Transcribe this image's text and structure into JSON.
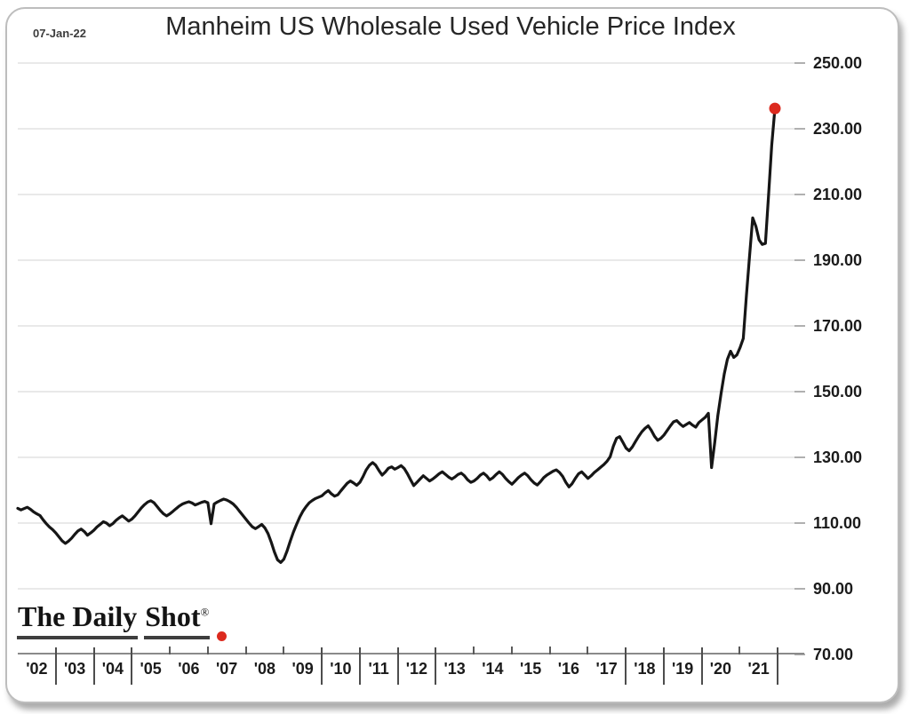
{
  "header": {
    "date": "07-Jan-22",
    "title": "Manheim US Wholesale Used Vehicle Price Index"
  },
  "logo": {
    "part1": "The Daily",
    "part2": "Shot",
    "registered": "®"
  },
  "colors": {
    "line": "#161616",
    "marker": "#dc2a1e",
    "grid": "#e9e9e9",
    "grid_tick": "#b0b0b0",
    "axis": "#8a8a8a",
    "text": "#1b1b1b"
  },
  "chart_data": {
    "type": "line",
    "title": "Manheim US Wholesale Used Vehicle Price Index",
    "xlabel": "",
    "ylabel": "",
    "ylim": [
      70,
      250
    ],
    "grid": "horizontal",
    "frequency": "monthly",
    "x_range": [
      "Jan 2002",
      "Dec 2021"
    ],
    "x_tick_labels": [
      "'02",
      "'03",
      "'04",
      "'05",
      "'06",
      "'07",
      "'08",
      "'09",
      "'10",
      "'11",
      "'12",
      "'13",
      "'14",
      "'15",
      "'16",
      "'17",
      "'18",
      "'19",
      "'20",
      "'21"
    ],
    "x_tick_separators": [
      "tall",
      "tall",
      "tall",
      "short",
      "short",
      "short",
      "short",
      "tall",
      "tall",
      "tall",
      "tall",
      "short",
      "short",
      "short",
      "short",
      "tall",
      "tall",
      "tall",
      "short",
      "tall"
    ],
    "y_tick_labels": [
      "250.00",
      "230.00",
      "210.00",
      "190.00",
      "170.00",
      "150.00",
      "130.00",
      "110.00",
      "90.00",
      "70.00"
    ],
    "series": [
      {
        "name": "Manheim US Wholesale Used Vehicle Price Index",
        "values": [
          114.5,
          114.0,
          114.4,
          114.8,
          114.2,
          113.4,
          112.8,
          112.3,
          111.0,
          109.8,
          108.8,
          108.0,
          107.0,
          105.8,
          104.6,
          103.8,
          104.5,
          105.4,
          106.6,
          107.6,
          108.2,
          107.4,
          106.3,
          107.0,
          107.8,
          108.8,
          109.6,
          110.4,
          110.0,
          109.2,
          109.8,
          110.8,
          111.6,
          112.2,
          111.4,
          110.6,
          111.2,
          112.2,
          113.4,
          114.6,
          115.6,
          116.4,
          116.8,
          116.2,
          115.0,
          113.8,
          112.8,
          112.2,
          112.8,
          113.6,
          114.4,
          115.2,
          115.8,
          116.2,
          116.5,
          116.1,
          115.5,
          115.9,
          116.3,
          116.6,
          116.2,
          109.8,
          115.8,
          116.4,
          116.9,
          117.3,
          117.0,
          116.5,
          115.8,
          114.8,
          113.6,
          112.4,
          111.2,
          110.0,
          108.9,
          108.3,
          108.9,
          109.6,
          108.5,
          106.8,
          104.2,
          101.2,
          98.8,
          98.0,
          99.0,
          101.5,
          104.5,
          107.2,
          109.6,
          111.8,
          113.6,
          115.0,
          116.2,
          116.9,
          117.5,
          117.9,
          118.3,
          119.2,
          119.9,
          118.9,
          118.2,
          118.6,
          119.8,
          121.0,
          122.1,
          122.8,
          122.2,
          121.5,
          122.4,
          124.2,
          126.2,
          127.6,
          128.4,
          127.6,
          126.0,
          124.6,
          125.5,
          126.7,
          127.1,
          126.4,
          126.9,
          127.5,
          126.6,
          125.0,
          123.2,
          121.4,
          122.4,
          123.4,
          124.4,
          123.6,
          122.8,
          123.4,
          124.2,
          125.0,
          125.6,
          124.8,
          124.0,
          123.4,
          124.0,
          124.8,
          125.2,
          124.4,
          123.2,
          122.4,
          122.8,
          123.6,
          124.6,
          125.2,
          124.4,
          123.2,
          123.8,
          124.8,
          125.6,
          124.8,
          123.6,
          122.6,
          121.8,
          122.8,
          123.8,
          124.6,
          125.2,
          124.4,
          123.2,
          122.2,
          121.6,
          122.6,
          123.8,
          124.6,
          125.2,
          125.8,
          126.2,
          125.4,
          124.2,
          122.4,
          121.0,
          122.0,
          123.6,
          125.0,
          125.6,
          124.6,
          123.6,
          124.4,
          125.4,
          126.2,
          127.0,
          127.8,
          128.8,
          130.2,
          133.4,
          135.8,
          136.3,
          134.6,
          132.8,
          132.0,
          133.2,
          134.8,
          136.4,
          137.8,
          138.8,
          139.6,
          138.2,
          136.4,
          135.2,
          135.8,
          136.8,
          138.2,
          139.6,
          140.8,
          141.2,
          140.2,
          139.4,
          140.0,
          140.6,
          139.8,
          139.2,
          140.6,
          141.4,
          142.2,
          143.4,
          126.9,
          134.6,
          142.8,
          149.4,
          155.4,
          159.8,
          162.3,
          160.4,
          161.2,
          163.4,
          166.2,
          179.2,
          191.4,
          202.9,
          200.3,
          196.2,
          194.8,
          195.1,
          210.0,
          225.0,
          236.2
        ]
      }
    ],
    "end_marker": {
      "value": 236.2,
      "color": "#dc2a1e"
    },
    "legend": "none"
  }
}
